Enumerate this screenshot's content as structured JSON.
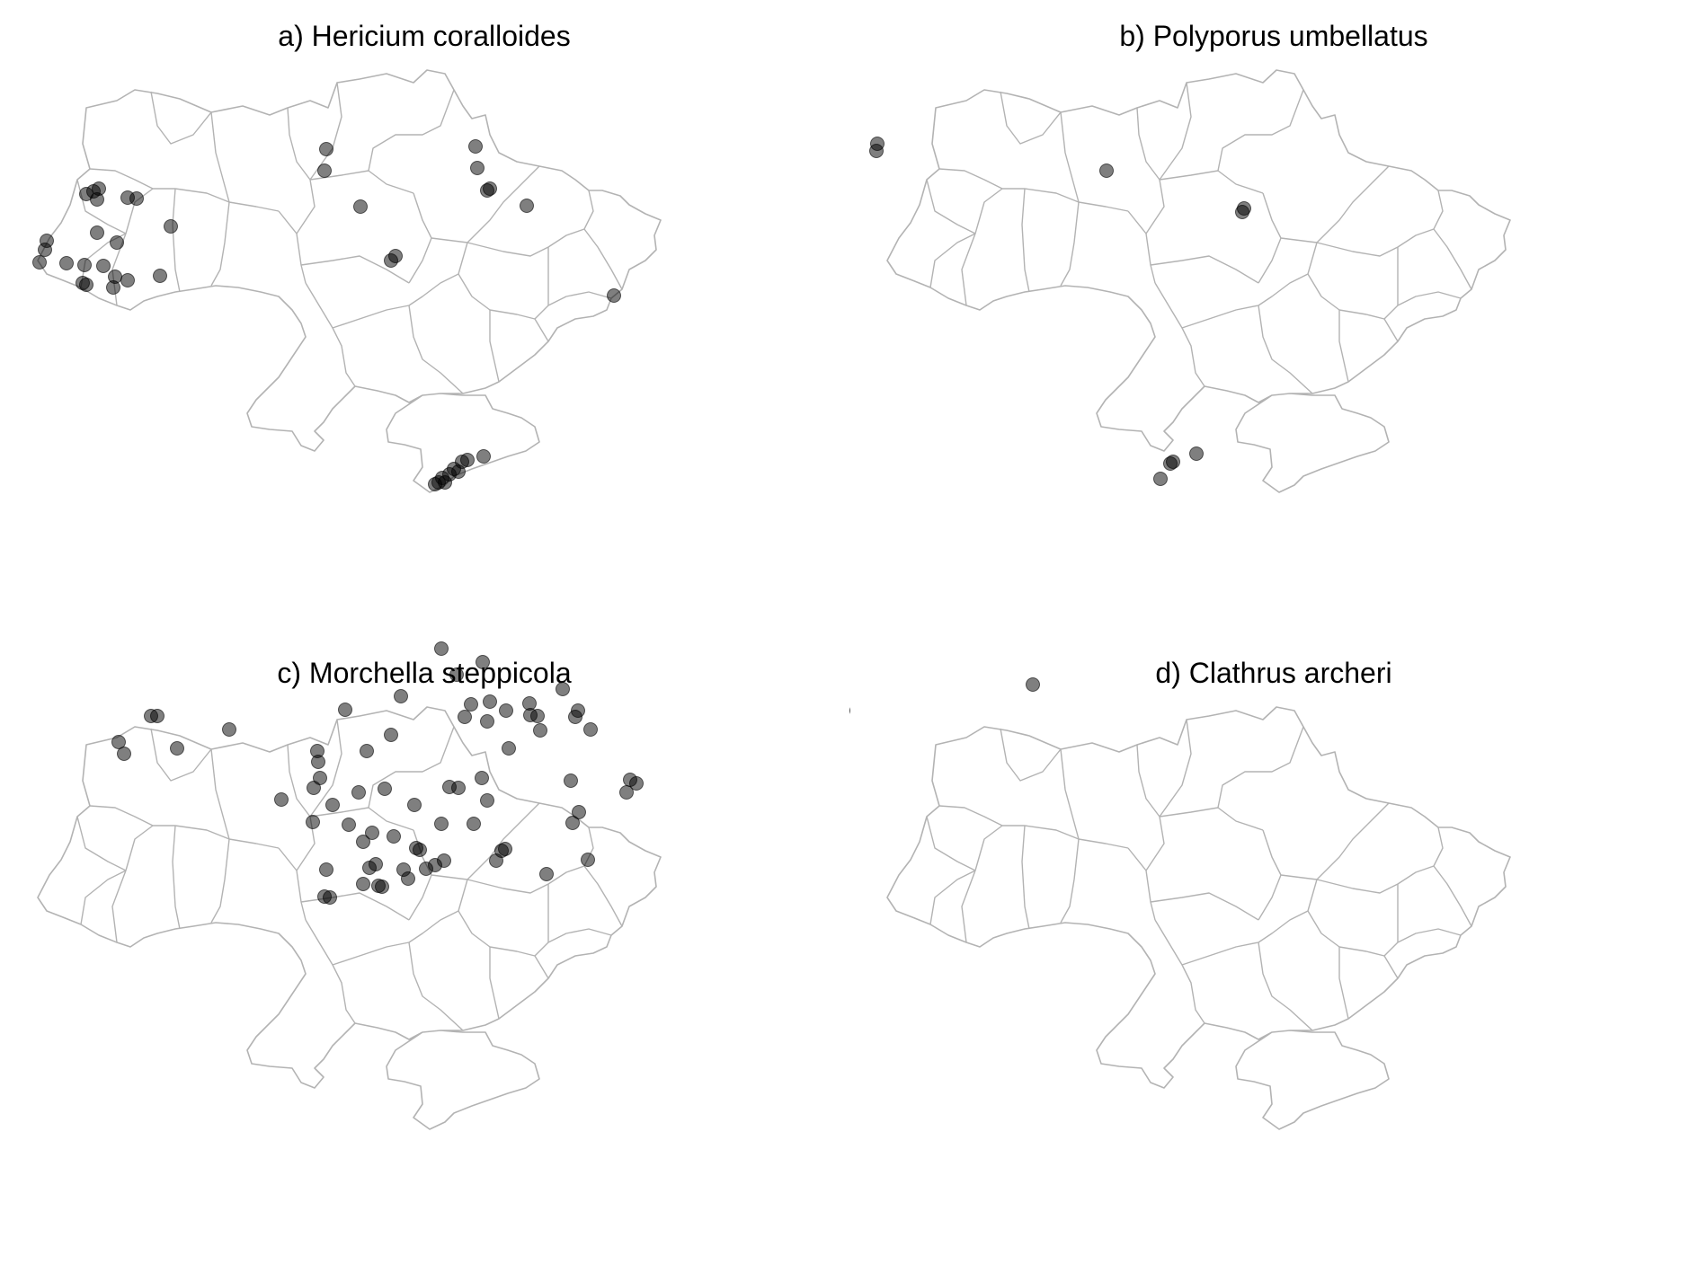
{
  "figure": {
    "panels": [
      {
        "key": "a",
        "title": "a) Hericium coralloides"
      },
      {
        "key": "b",
        "title": "b) Polyporus umbellatus"
      },
      {
        "key": "c",
        "title": "c) Morchella steppicola"
      },
      {
        "key": "d",
        "title": "d) Clathrus archeri"
      }
    ],
    "colors": {
      "border": "#b3b3b3",
      "point": "#000000",
      "background": "#ffffff"
    }
  },
  "map_data": {
    "type": "point-map",
    "region": "Ukraine oblast boundaries",
    "marker": "semi-transparent filled circle (darker where points overlap)"
  }
}
